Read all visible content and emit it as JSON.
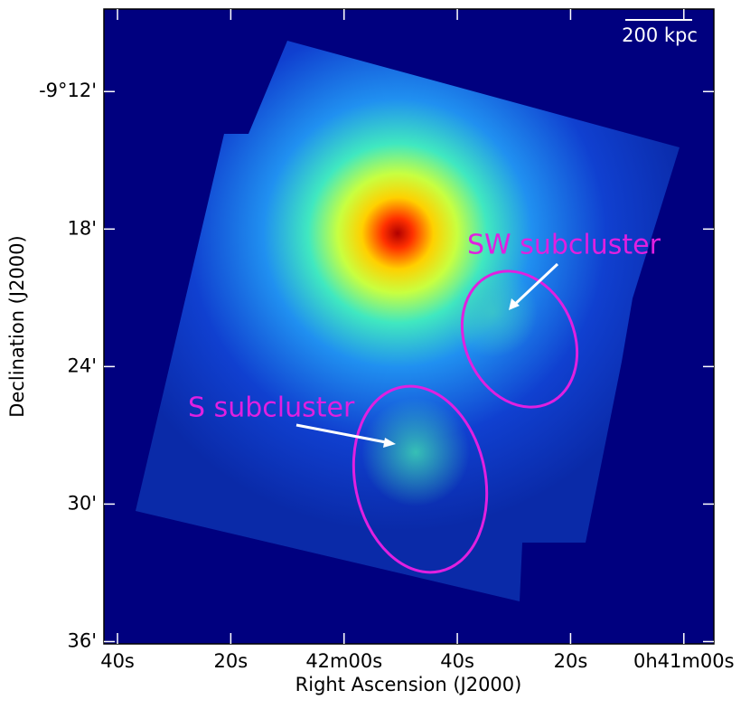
{
  "chart_data": {
    "type": "image",
    "x_label": "Right Ascension (J2000)",
    "y_label": "Declination (J2000)",
    "xlim": [
      2562.4,
      2454.7
    ],
    "ylim": [
      -576.1,
      -548.4
    ],
    "xticks": [
      {
        "value": 2560,
        "label": "40s"
      },
      {
        "value": 2540,
        "label": "20s"
      },
      {
        "value": 2520,
        "label": "42m00s"
      },
      {
        "value": 2500,
        "label": "40s"
      },
      {
        "value": 2480,
        "label": "20s"
      },
      {
        "value": 2460,
        "label": "0h41m00s"
      }
    ],
    "yticks": [
      {
        "value": -552,
        "label": "-9°12'"
      },
      {
        "value": -558,
        "label": "18'"
      },
      {
        "value": -564,
        "label": "24'"
      },
      {
        "value": -570,
        "label": "30'"
      },
      {
        "value": -576,
        "label": "36'"
      }
    ],
    "annotations": [
      "SW subcluster",
      "S subcluster",
      "200 kpc"
    ]
  }
}
